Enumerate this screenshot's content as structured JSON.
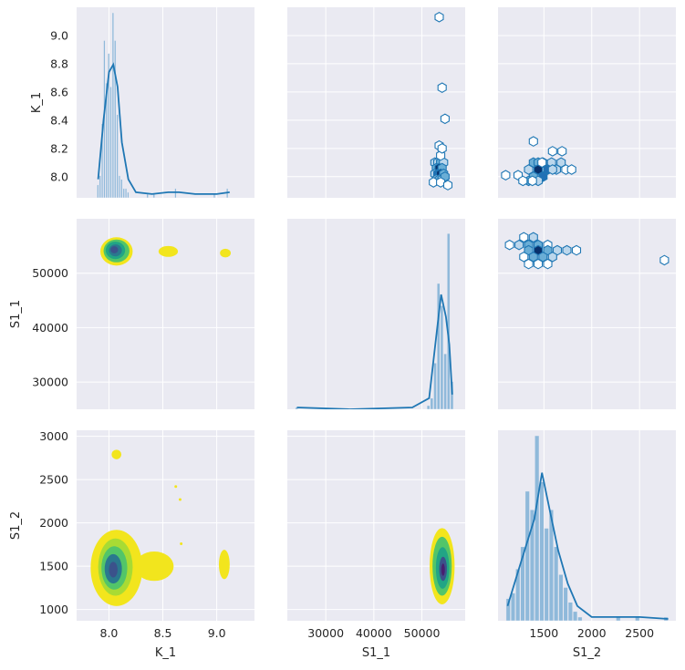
{
  "chart_data": {
    "type": "pairgrid",
    "variables": [
      "K_1",
      "S1_1",
      "S1_2"
    ],
    "axes": {
      "K_1": {
        "label": "K_1",
        "lim": [
          7.7,
          9.35
        ],
        "ticks": [
          8.0,
          8.5,
          9.0
        ],
        "tick_labels": [
          "8.0",
          "8.5",
          "9.0"
        ],
        "y_lim": [
          7.85,
          9.2
        ],
        "y_ticks": [
          8.0,
          8.2,
          8.4,
          8.6,
          8.8,
          9.0
        ],
        "y_tick_labels": [
          "8.0",
          "8.2",
          "8.4",
          "8.6",
          "8.8",
          "9.0"
        ]
      },
      "S1_1": {
        "label": "S1_1",
        "lim": [
          22000,
          59000
        ],
        "ticks": [
          30000,
          40000,
          50000
        ],
        "tick_labels": [
          "30000",
          "40000",
          "50000"
        ],
        "y_lim": [
          25000,
          60000
        ],
        "y_ticks": [
          30000,
          40000,
          50000
        ],
        "y_tick_labels": [
          "30000",
          "40000",
          "50000"
        ]
      },
      "S1_2": {
        "label": "S1_2",
        "lim": [
          1020,
          2880
        ],
        "ticks": [
          1500,
          2000,
          2500
        ],
        "tick_labels": [
          "1500",
          "2000",
          "2500"
        ],
        "y_lim": [
          870,
          3070
        ],
        "y_ticks": [
          1000,
          1500,
          2000,
          2500,
          3000
        ],
        "y_tick_labels": [
          "1000",
          "1500",
          "2000",
          "2500",
          "3000"
        ]
      }
    },
    "hist_K_1": {
      "bins": [
        [
          7.9,
          0.07
        ],
        [
          7.92,
          0.12
        ],
        [
          7.94,
          0.4
        ],
        [
          7.96,
          0.85
        ],
        [
          7.98,
          0.62
        ],
        [
          8.0,
          0.78
        ],
        [
          8.02,
          0.6
        ],
        [
          8.04,
          1.0
        ],
        [
          8.06,
          0.85
        ],
        [
          8.08,
          0.45
        ],
        [
          8.1,
          0.12
        ],
        [
          8.12,
          0.1
        ],
        [
          8.14,
          0.05
        ],
        [
          8.16,
          0.05
        ],
        [
          8.18,
          0.03
        ],
        [
          8.36,
          0.02
        ],
        [
          8.42,
          0.02
        ],
        [
          8.62,
          0.05
        ],
        [
          8.98,
          0.02
        ],
        [
          9.1,
          0.05
        ]
      ],
      "bin_width": 0.02,
      "kde": [
        [
          7.9,
          0.1
        ],
        [
          7.95,
          0.42
        ],
        [
          8.0,
          0.68
        ],
        [
          8.04,
          0.72
        ],
        [
          8.08,
          0.6
        ],
        [
          8.12,
          0.3
        ],
        [
          8.18,
          0.1
        ],
        [
          8.25,
          0.03
        ],
        [
          8.4,
          0.02
        ],
        [
          8.55,
          0.03
        ],
        [
          8.65,
          0.03
        ],
        [
          8.8,
          0.02
        ],
        [
          9.0,
          0.02
        ],
        [
          9.12,
          0.03
        ]
      ]
    },
    "hist_S1_1": {
      "bins": [
        [
          24000,
          0.01
        ],
        [
          51400,
          0.02
        ],
        [
          52100,
          0.06
        ],
        [
          52800,
          0.25
        ],
        [
          53500,
          0.68
        ],
        [
          54200,
          0.56
        ],
        [
          54900,
          0.3
        ],
        [
          55600,
          0.95
        ],
        [
          56300,
          0.15
        ]
      ],
      "bin_width": 700,
      "kde": [
        [
          24000,
          0.01
        ],
        [
          35000,
          0.0
        ],
        [
          48000,
          0.01
        ],
        [
          51500,
          0.06
        ],
        [
          53000,
          0.4
        ],
        [
          54000,
          0.62
        ],
        [
          55000,
          0.5
        ],
        [
          55700,
          0.35
        ],
        [
          56300,
          0.08
        ]
      ]
    },
    "hist_S1_2": {
      "bins": [
        [
          1130,
          0.12
        ],
        [
          1180,
          0.15
        ],
        [
          1230,
          0.28
        ],
        [
          1280,
          0.4
        ],
        [
          1330,
          0.7
        ],
        [
          1380,
          0.6
        ],
        [
          1430,
          1.0
        ],
        [
          1480,
          0.75
        ],
        [
          1530,
          0.5
        ],
        [
          1580,
          0.6
        ],
        [
          1630,
          0.4
        ],
        [
          1680,
          0.25
        ],
        [
          1730,
          0.18
        ],
        [
          1780,
          0.1
        ],
        [
          1830,
          0.05
        ],
        [
          1880,
          0.02
        ],
        [
          2280,
          0.02
        ],
        [
          2480,
          0.02
        ],
        [
          2780,
          0.02
        ]
      ],
      "bin_width": 50,
      "kde": [
        [
          1120,
          0.08
        ],
        [
          1250,
          0.3
        ],
        [
          1400,
          0.55
        ],
        [
          1480,
          0.8
        ],
        [
          1560,
          0.6
        ],
        [
          1650,
          0.38
        ],
        [
          1750,
          0.2
        ],
        [
          1850,
          0.08
        ],
        [
          2000,
          0.02
        ],
        [
          2300,
          0.02
        ],
        [
          2500,
          0.02
        ],
        [
          2800,
          0.01
        ]
      ]
    },
    "hexbin_K_1_vs_S1_1": [
      [
        52700,
        8.1,
        0.15
      ],
      [
        53300,
        8.1,
        0.35
      ],
      [
        53900,
        8.1,
        0.55
      ],
      [
        54500,
        8.1,
        0.2
      ],
      [
        53000,
        8.06,
        0.4
      ],
      [
        53600,
        8.06,
        0.9
      ],
      [
        54200,
        8.06,
        0.5
      ],
      [
        52700,
        8.02,
        0.3
      ],
      [
        53300,
        8.02,
        0.7
      ],
      [
        53900,
        8.02,
        1.0
      ],
      [
        54500,
        8.02,
        0.45
      ],
      [
        53000,
        7.98,
        0.2
      ],
      [
        53600,
        7.98,
        0.5
      ],
      [
        54200,
        7.98,
        0.35
      ],
      [
        54800,
        8.0,
        0.5
      ],
      [
        52400,
        7.96,
        0.0
      ],
      [
        53900,
        7.96,
        0.0
      ],
      [
        55400,
        7.94,
        0.0
      ],
      [
        53600,
        8.22,
        0.0
      ],
      [
        53900,
        8.15,
        0.0
      ],
      [
        54200,
        8.2,
        0.0
      ],
      [
        54800,
        8.41,
        0.0
      ],
      [
        54200,
        8.63,
        0.0
      ],
      [
        53600,
        9.13,
        0.0
      ]
    ],
    "hexbin_K_1_vs_S1_2": [
      [
        1390,
        8.1,
        0.4
      ],
      [
        1440,
        8.1,
        0.6
      ],
      [
        1490,
        8.1,
        0.3
      ],
      [
        1580,
        8.1,
        0.35
      ],
      [
        1680,
        8.1,
        0.15
      ],
      [
        1340,
        8.05,
        0.35
      ],
      [
        1440,
        8.05,
        1.0
      ],
      [
        1540,
        8.05,
        0.7
      ],
      [
        1630,
        8.05,
        0.3
      ],
      [
        1390,
        8.0,
        0.45
      ],
      [
        1490,
        8.0,
        0.7
      ],
      [
        1590,
        8.05,
        0.2
      ],
      [
        1340,
        7.97,
        0.55
      ],
      [
        1440,
        7.97,
        0.35
      ],
      [
        1100,
        8.01,
        0.0
      ],
      [
        1230,
        8.01,
        0.0
      ],
      [
        1280,
        7.97,
        0.0
      ],
      [
        1380,
        7.97,
        0.0
      ],
      [
        1480,
        8.1,
        0.0
      ],
      [
        1730,
        8.05,
        0.0
      ],
      [
        1790,
        8.05,
        0.0
      ],
      [
        1590,
        8.18,
        0.0
      ],
      [
        1690,
        8.18,
        0.0
      ],
      [
        1390,
        8.25,
        0.0
      ]
    ],
    "hexbin_S1_1_vs_S1_2": [
      [
        1140,
        55200,
        0.0
      ],
      [
        1240,
        55200,
        0.3
      ],
      [
        1340,
        55200,
        0.6
      ],
      [
        1440,
        55200,
        0.5
      ],
      [
        1540,
        55200,
        0.0
      ],
      [
        1290,
        56600,
        0.0
      ],
      [
        1390,
        56600,
        0.15
      ],
      [
        1340,
        54200,
        0.4
      ],
      [
        1440,
        54200,
        1.0
      ],
      [
        1540,
        54200,
        0.6
      ],
      [
        1640,
        54200,
        0.3
      ],
      [
        1740,
        54200,
        0.15
      ],
      [
        1840,
        54200,
        0.0
      ],
      [
        1390,
        53000,
        0.55
      ],
      [
        1490,
        53000,
        0.45
      ],
      [
        1590,
        53000,
        0.35
      ],
      [
        1290,
        53000,
        0.0
      ],
      [
        1340,
        51700,
        0.0
      ],
      [
        1440,
        51700,
        0.0
      ],
      [
        1540,
        51700,
        0.0
      ],
      [
        2760,
        52400,
        0.0
      ]
    ],
    "kde_K_1_vs_S1_1": [
      {
        "cx": 8.07,
        "cy": 54000,
        "rx": 0.15,
        "ry": 2600,
        "level": 0.0
      },
      {
        "cx": 8.55,
        "cy": 54000,
        "rx": 0.09,
        "ry": 1000,
        "level": 0.0
      },
      {
        "cx": 9.08,
        "cy": 53700,
        "rx": 0.05,
        "ry": 800,
        "level": 0.0
      },
      {
        "cx": 8.07,
        "cy": 54100,
        "rx": 0.12,
        "ry": 2100,
        "level": 0.25
      },
      {
        "cx": 8.06,
        "cy": 54200,
        "rx": 0.09,
        "ry": 1600,
        "level": 0.45
      },
      {
        "cx": 8.06,
        "cy": 54200,
        "rx": 0.06,
        "ry": 1100,
        "level": 0.65
      },
      {
        "cx": 8.05,
        "cy": 54300,
        "rx": 0.035,
        "ry": 650,
        "level": 0.85
      }
    ],
    "kde_K_1_vs_S1_2": [
      {
        "cx": 8.07,
        "cy": 1480,
        "rx": 0.24,
        "ry": 440,
        "level": 0.0
      },
      {
        "cx": 8.42,
        "cy": 1500,
        "rx": 0.18,
        "ry": 170,
        "level": 0.0
      },
      {
        "cx": 8.07,
        "cy": 2790,
        "rx": 0.045,
        "ry": 55,
        "level": 0.0
      },
      {
        "cx": 9.07,
        "cy": 1520,
        "rx": 0.05,
        "ry": 170,
        "level": 0.0
      },
      {
        "cx": 8.62,
        "cy": 2420,
        "rx": 0.012,
        "ry": 16,
        "level": 0.0
      },
      {
        "cx": 8.66,
        "cy": 2270,
        "rx": 0.01,
        "ry": 14,
        "level": 0.0
      },
      {
        "cx": 8.67,
        "cy": 1760,
        "rx": 0.008,
        "ry": 10,
        "level": 0.0
      },
      {
        "cx": 8.06,
        "cy": 1490,
        "rx": 0.16,
        "ry": 330,
        "level": 0.2
      },
      {
        "cx": 8.05,
        "cy": 1480,
        "rx": 0.12,
        "ry": 250,
        "level": 0.4
      },
      {
        "cx": 8.04,
        "cy": 1470,
        "rx": 0.08,
        "ry": 170,
        "level": 0.6
      },
      {
        "cx": 8.04,
        "cy": 1460,
        "rx": 0.04,
        "ry": 90,
        "level": 0.85
      }
    ],
    "kde_S1_1_vs_S1_2": [
      {
        "cx": 54200,
        "cy": 1500,
        "rx": 2600,
        "ry": 440,
        "level": 0.0
      },
      {
        "cx": 54200,
        "cy": 1500,
        "rx": 2000,
        "ry": 340,
        "level": 0.25
      },
      {
        "cx": 54300,
        "cy": 1480,
        "rx": 1400,
        "ry": 240,
        "level": 0.5
      },
      {
        "cx": 54400,
        "cy": 1470,
        "rx": 800,
        "ry": 140,
        "level": 0.75
      },
      {
        "cx": 54400,
        "cy": 1460,
        "rx": 380,
        "ry": 70,
        "level": 0.95
      }
    ],
    "colors": {
      "panel_background": "#eaeaf2",
      "grid": "#ffffff",
      "hist_bar": "#7fb0d6",
      "kde_line": "#1f77b4",
      "hex_scale": [
        "#ffffff",
        "#bcd7ec",
        "#6aaed6",
        "#2171b5",
        "#08306b"
      ],
      "hex_edge": "#1f77b4",
      "kde_fill_scale": [
        "#f2e51d",
        "#a8db34",
        "#52c569",
        "#21a585",
        "#2a788e",
        "#3b528b",
        "#481f70"
      ]
    }
  }
}
